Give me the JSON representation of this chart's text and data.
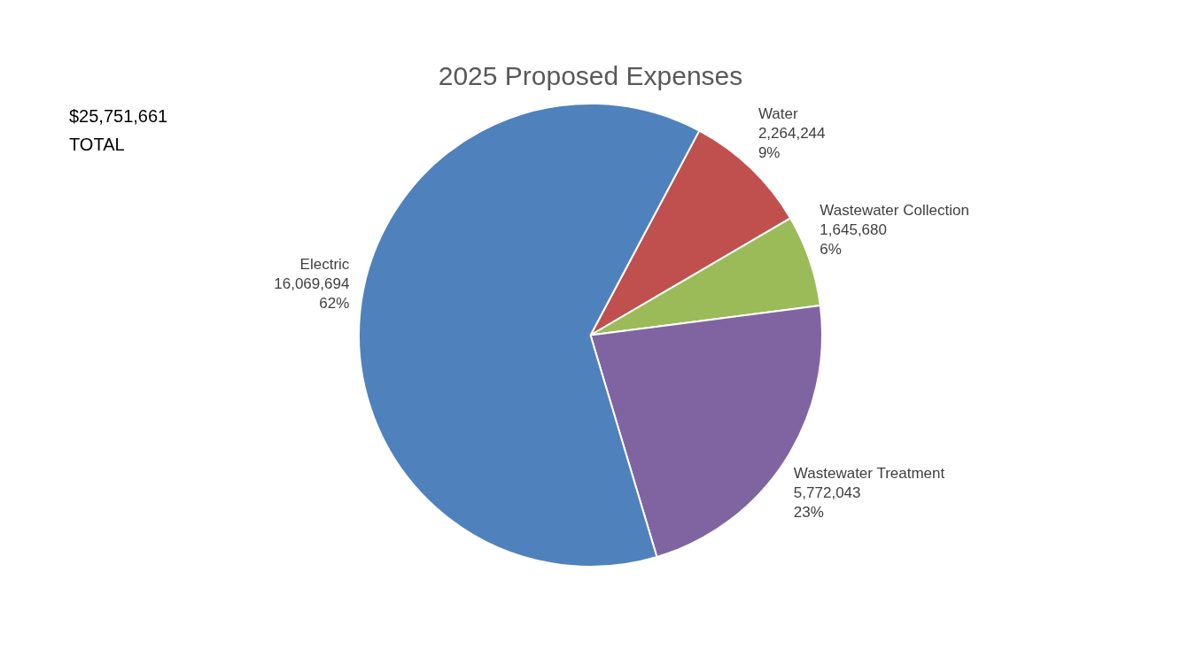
{
  "chart_data": {
    "type": "pie",
    "title": "2025 Proposed Expenses",
    "categories": [
      "Water",
      "Wastewater Collection",
      "Wastewater Treatment",
      "Electric"
    ],
    "values": [
      2264244,
      1645680,
      5772043,
      16069694
    ],
    "colors": [
      "#c0504d",
      "#9bbb59",
      "#8064a2",
      "#4f81bd"
    ],
    "value_labels": [
      "2,264,244\n9%",
      "1,645,680\n6%",
      "5,772,043\n23%",
      "16,069,694\n62%"
    ],
    "annotations": [
      "$25,751,661\nTOTAL"
    ],
    "legend": false
  }
}
